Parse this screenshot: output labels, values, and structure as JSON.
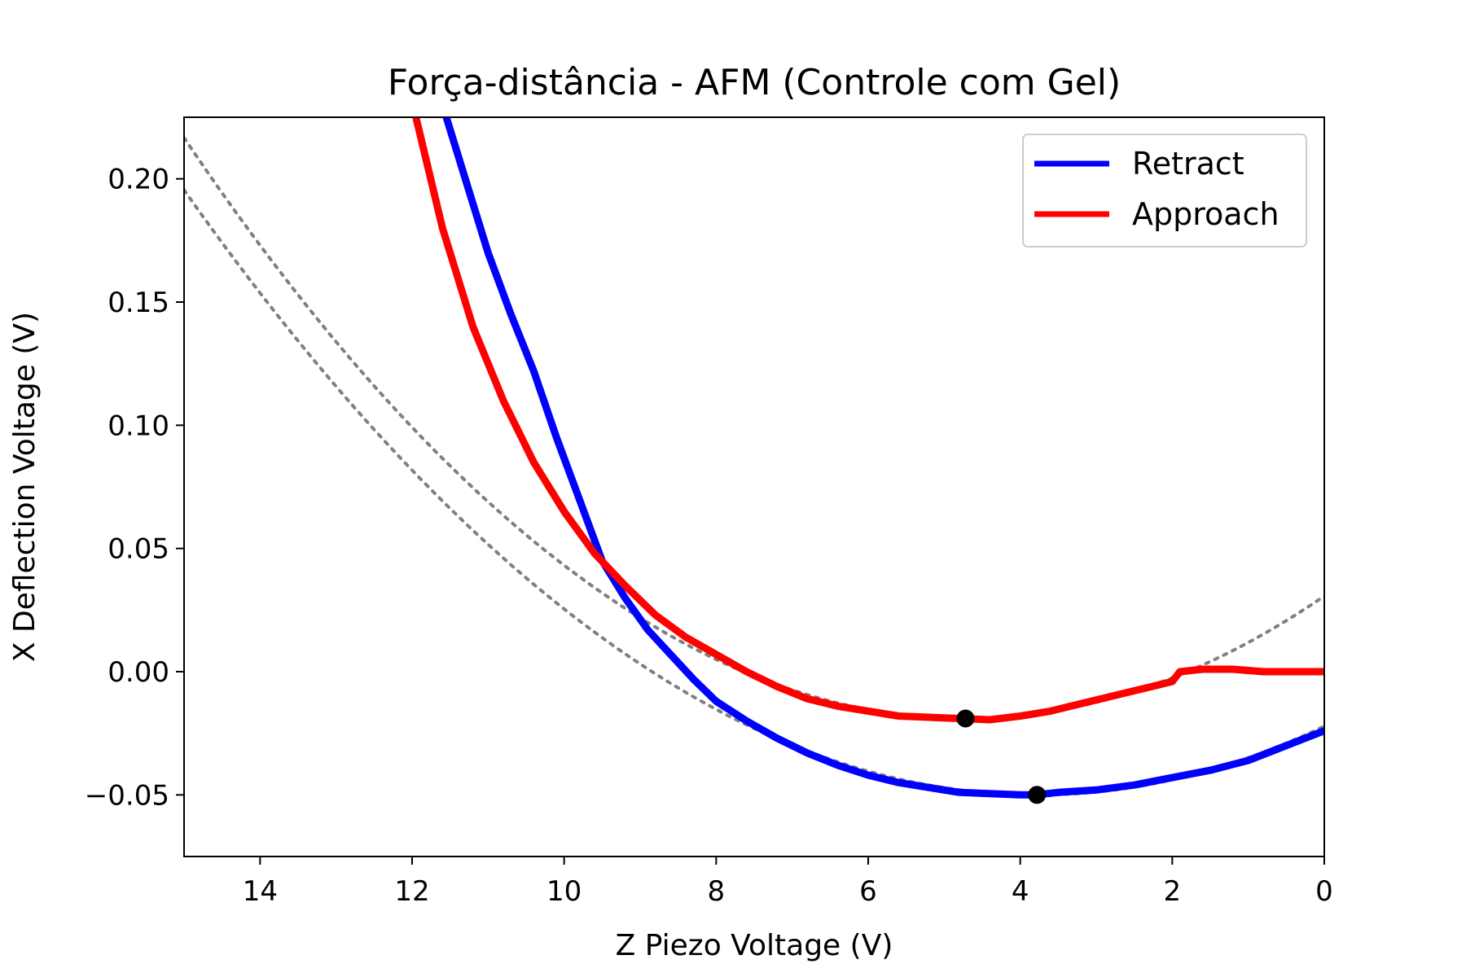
{
  "chart_data": {
    "type": "line",
    "title": "Força-distância - AFM (Controle com Gel)",
    "xlabel": "Z Piezo Voltage (V)",
    "ylabel": "X Deflection Voltage (V)",
    "xlim": [
      15,
      0
    ],
    "ylim": [
      -0.075,
      0.225
    ],
    "x_reversed": true,
    "xticks": [
      14,
      12,
      10,
      8,
      6,
      4,
      2,
      0
    ],
    "xtick_labels": [
      "14",
      "12",
      "10",
      "8",
      "6",
      "4",
      "2",
      "0"
    ],
    "yticks": [
      -0.05,
      0.0,
      0.05,
      0.1,
      0.15,
      0.2
    ],
    "ytick_labels": [
      "−0.05",
      "0.00",
      "0.05",
      "0.10",
      "0.15",
      "0.20"
    ],
    "grid": false,
    "legend_position": "top-right",
    "series": [
      {
        "name": "Retract",
        "color": "#0000ff",
        "x": [
          11.55,
          11.3,
          11.0,
          10.7,
          10.4,
          10.1,
          9.8,
          9.5,
          9.2,
          8.9,
          8.6,
          8.3,
          8.0,
          7.6,
          7.2,
          6.8,
          6.4,
          6.0,
          5.6,
          5.2,
          4.8,
          4.4,
          4.0,
          3.8,
          3.5,
          3.0,
          2.5,
          2.0,
          1.5,
          1.0,
          0.5,
          0.0
        ],
        "y": [
          0.225,
          0.2,
          0.17,
          0.145,
          0.122,
          0.095,
          0.07,
          0.045,
          0.03,
          0.017,
          0.007,
          -0.003,
          -0.012,
          -0.02,
          -0.027,
          -0.033,
          -0.038,
          -0.042,
          -0.045,
          -0.047,
          -0.049,
          -0.0495,
          -0.05,
          -0.05,
          -0.049,
          -0.048,
          -0.046,
          -0.043,
          -0.04,
          -0.036,
          -0.03,
          -0.024
        ]
      },
      {
        "name": "Approach",
        "color": "#ff0000",
        "x": [
          11.95,
          11.6,
          11.2,
          10.8,
          10.4,
          10.0,
          9.6,
          9.2,
          8.8,
          8.4,
          8.0,
          7.6,
          7.2,
          6.8,
          6.4,
          6.0,
          5.6,
          5.2,
          4.8,
          4.4,
          4.0,
          3.6,
          3.2,
          2.8,
          2.4,
          2.0,
          1.9,
          1.6,
          1.2,
          0.8,
          0.4,
          0.0
        ],
        "y": [
          0.225,
          0.18,
          0.14,
          0.11,
          0.085,
          0.065,
          0.048,
          0.035,
          0.023,
          0.014,
          0.007,
          0.0,
          -0.006,
          -0.011,
          -0.014,
          -0.016,
          -0.018,
          -0.0185,
          -0.019,
          -0.0195,
          -0.018,
          -0.016,
          -0.013,
          -0.01,
          -0.007,
          -0.004,
          0.0,
          0.001,
          0.001,
          0.0,
          0.0,
          0.0
        ]
      }
    ],
    "fit_curves": [
      {
        "style": "dotted",
        "color": "#808080",
        "vertex": [
          3.78,
          -0.05
        ],
        "coefficient": 0.00195
      },
      {
        "style": "dotted",
        "color": "#808080",
        "vertex": [
          4.72,
          -0.019
        ],
        "coefficient": 0.00223
      }
    ],
    "markers": [
      {
        "x": 4.72,
        "y": -0.019,
        "color": "#000000"
      },
      {
        "x": 3.78,
        "y": -0.05,
        "color": "#000000"
      }
    ]
  }
}
